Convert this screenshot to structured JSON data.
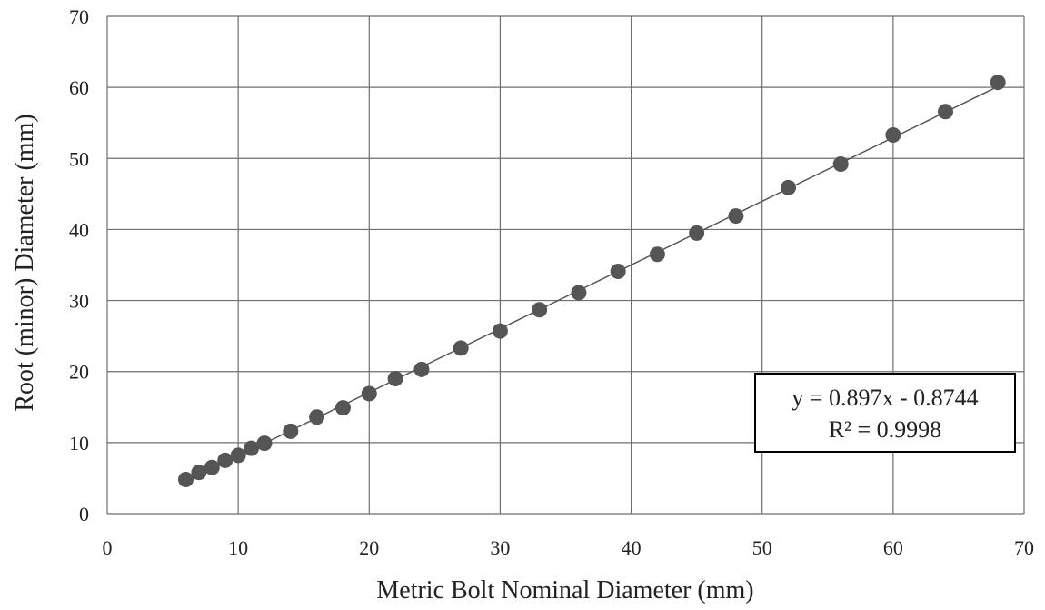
{
  "chart_data": {
    "type": "scatter",
    "title": "",
    "xlabel": "Metric Bolt Nominal Diameter (mm)",
    "ylabel": "Root (minor) Diameter (mm)",
    "xlim": [
      0,
      70
    ],
    "ylim": [
      0,
      70
    ],
    "x_ticks": [
      0,
      10,
      20,
      30,
      40,
      50,
      60,
      70
    ],
    "y_ticks": [
      0,
      10,
      20,
      30,
      40,
      50,
      60,
      70
    ],
    "grid": true,
    "legend": "none",
    "marker_color": "#555555",
    "line_color": "#555555",
    "series": [
      {
        "points": [
          {
            "x": 6,
            "y": 4.8
          },
          {
            "x": 7,
            "y": 5.8
          },
          {
            "x": 8,
            "y": 6.5
          },
          {
            "x": 9,
            "y": 7.5
          },
          {
            "x": 10,
            "y": 8.2
          },
          {
            "x": 11,
            "y": 9.2
          },
          {
            "x": 12,
            "y": 9.9
          },
          {
            "x": 14,
            "y": 11.6
          },
          {
            "x": 16,
            "y": 13.6
          },
          {
            "x": 18,
            "y": 14.9
          },
          {
            "x": 20,
            "y": 16.9
          },
          {
            "x": 22,
            "y": 19.0
          },
          {
            "x": 24,
            "y": 20.3
          },
          {
            "x": 27,
            "y": 23.3
          },
          {
            "x": 30,
            "y": 25.7
          },
          {
            "x": 33,
            "y": 28.7
          },
          {
            "x": 36,
            "y": 31.1
          },
          {
            "x": 39,
            "y": 34.1
          },
          {
            "x": 42,
            "y": 36.5
          },
          {
            "x": 45,
            "y": 39.5
          },
          {
            "x": 48,
            "y": 41.9
          },
          {
            "x": 52,
            "y": 45.9
          },
          {
            "x": 56,
            "y": 49.2
          },
          {
            "x": 60,
            "y": 53.3
          },
          {
            "x": 64,
            "y": 56.6
          },
          {
            "x": 68,
            "y": 60.7
          }
        ]
      }
    ],
    "trendline": {
      "type": "linear",
      "slope": 0.897,
      "intercept": -0.8744,
      "x_range": [
        6,
        68
      ]
    },
    "annotation": {
      "equation": "y = 0.897x - 0.8744",
      "r_squared": "R² = 0.9998",
      "placement": "bottom-right"
    }
  }
}
